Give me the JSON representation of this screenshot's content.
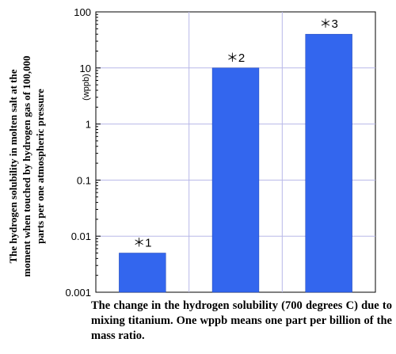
{
  "chart_data": {
    "type": "bar",
    "y_scale": "log",
    "ylim": [
      0.001,
      100
    ],
    "y_tick_labels": [
      "100",
      "10",
      "1",
      "0.1",
      "0.01",
      "0.001"
    ],
    "y_unit_label": "(wppb)",
    "ylabel_lines": [
      "The hydrogen solubility in molten salt at the",
      "moment when touched by hydrogen gas of 100,000",
      "parts per one atmospheric pressure"
    ],
    "xlabel": "The change in the hydrogen solubility (700 degrees C) due to mixing titanium. One wppb means one part per billion of the mass ratio.",
    "categories": [
      "＊1",
      "＊2",
      "＊3"
    ],
    "values": [
      0.005,
      10,
      40
    ],
    "bar_color": "#3366ee",
    "grid_color": "#b8b8e8",
    "grid": true
  }
}
